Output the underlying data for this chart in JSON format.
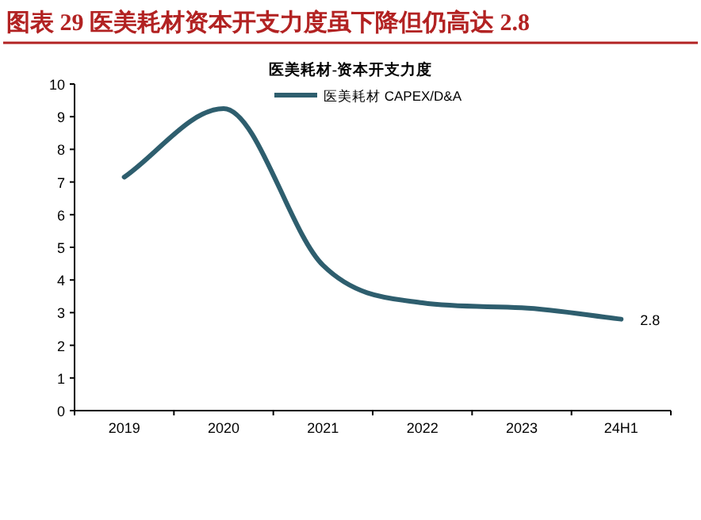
{
  "chart_data": {
    "type": "line",
    "title": "图表 29  医美耗材资本开支力度虽下降但仍高达 2.8",
    "subtitle": "医美耗材-资本开支力度",
    "categories": [
      "2019",
      "2020",
      "2021",
      "2022",
      "2023",
      "24H1"
    ],
    "series": [
      {
        "name": "医美耗材 CAPEX/D&A",
        "color": "#2e5e6e",
        "values": [
          7.15,
          9.25,
          4.45,
          3.3,
          3.15,
          2.8
        ],
        "value_labels": [
          null,
          null,
          null,
          null,
          null,
          "2.8"
        ]
      }
    ],
    "ylim": [
      0,
      10
    ],
    "yticks": [
      0,
      1,
      2,
      3,
      4,
      5,
      6,
      7,
      8,
      9,
      10
    ],
    "grid": false,
    "legend": "top",
    "marker": "none",
    "line_style": "solid"
  }
}
